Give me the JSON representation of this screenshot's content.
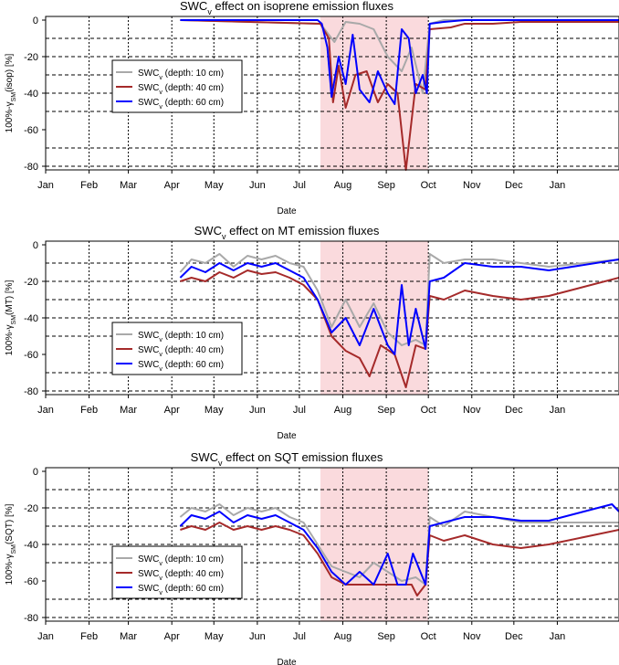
{
  "chart_data": [
    {
      "type": "line",
      "title": "SWC",
      "title_sub": "v",
      "title_rest": " effect on isoprene emission fluxes",
      "xlabel": "Date",
      "ylabel": "100%-γ",
      "ylabel_sub": "SM",
      "ylabel_rest": "(isop) [%]",
      "x_unit": "day of year",
      "xlim": [
        1,
        410
      ],
      "ylim": [
        -82,
        2
      ],
      "x_ticks": [
        {
          "x": 1,
          "label": "Jan"
        },
        {
          "x": 32,
          "label": "Feb"
        },
        {
          "x": 60,
          "label": "Mar"
        },
        {
          "x": 91,
          "label": "Apr"
        },
        {
          "x": 121,
          "label": "May"
        },
        {
          "x": 152,
          "label": "Jun"
        },
        {
          "x": 182,
          "label": "Jul"
        },
        {
          "x": 213,
          "label": "Aug"
        },
        {
          "x": 244,
          "label": "Sep"
        },
        {
          "x": 274,
          "label": "Oct"
        },
        {
          "x": 305,
          "label": "Nov"
        },
        {
          "x": 335,
          "label": "Dec"
        },
        {
          "x": 366,
          "label": "Jan"
        }
      ],
      "y_ticks": [
        0,
        -20,
        -40,
        -60,
        -80
      ],
      "h_gridlines": [
        -10,
        -20,
        -30,
        -40,
        -50,
        -70,
        -80
      ],
      "shaded_region": {
        "x_start": 197,
        "x_end": 274,
        "color": "#fadadd"
      },
      "legend_position": "left",
      "series": [
        {
          "name": "SWC",
          "name_sub": "v",
          "name_rest": " (depth: 10 cm)",
          "color": "#a9a9a9",
          "x": [
            97,
            197,
            207,
            215,
            225,
            235,
            245,
            255,
            262,
            270,
            275,
            285,
            300,
            320,
            340,
            360,
            410
          ],
          "y": [
            0,
            -2,
            -12,
            -1,
            -2,
            -5,
            -20,
            -28,
            -15,
            -40,
            -2,
            0,
            0,
            0,
            0,
            0,
            0
          ]
        },
        {
          "name": "SWC",
          "name_sub": "v",
          "name_rest": " (depth: 40 cm)",
          "color": "#a52a2a",
          "x": [
            97,
            197,
            203,
            206,
            210,
            215,
            222,
            230,
            238,
            245,
            252,
            258,
            265,
            272,
            275,
            290,
            300,
            320,
            340,
            360,
            410
          ],
          "y": [
            0,
            -2,
            -10,
            -45,
            -25,
            -48,
            -30,
            -28,
            -45,
            -35,
            -40,
            -82,
            -35,
            -38,
            -5,
            -4,
            -2,
            -2,
            -1,
            -1,
            -1
          ]
        },
        {
          "name": "SWC",
          "name_sub": "v",
          "name_rest": " (depth: 60 cm)",
          "color": "#0000ff",
          "x": [
            97,
            195,
            198,
            202,
            205,
            210,
            215,
            220,
            225,
            232,
            238,
            245,
            250,
            255,
            260,
            265,
            270,
            273,
            275,
            285,
            300,
            320,
            340,
            360,
            410
          ],
          "y": [
            0,
            0,
            -2,
            -15,
            -42,
            -20,
            -35,
            -8,
            -38,
            -45,
            -28,
            -40,
            -46,
            -5,
            -10,
            -40,
            -30,
            -40,
            -2,
            -1,
            0,
            0,
            0,
            0,
            0
          ]
        }
      ]
    },
    {
      "type": "line",
      "title": "SWC",
      "title_sub": "v",
      "title_rest": " effect on MT emission fluxes",
      "xlabel": "Date",
      "ylabel": "100%-γ",
      "ylabel_sub": "SM",
      "ylabel_rest": "(MT) [%]",
      "x_unit": "day of year",
      "xlim": [
        1,
        410
      ],
      "ylim": [
        -82,
        2
      ],
      "x_ticks": [
        {
          "x": 1,
          "label": "Jan"
        },
        {
          "x": 32,
          "label": "Feb"
        },
        {
          "x": 60,
          "label": "Mar"
        },
        {
          "x": 91,
          "label": "Apr"
        },
        {
          "x": 121,
          "label": "May"
        },
        {
          "x": 152,
          "label": "Jun"
        },
        {
          "x": 182,
          "label": "Jul"
        },
        {
          "x": 213,
          "label": "Aug"
        },
        {
          "x": 244,
          "label": "Sep"
        },
        {
          "x": 274,
          "label": "Oct"
        },
        {
          "x": 305,
          "label": "Nov"
        },
        {
          "x": 335,
          "label": "Dec"
        },
        {
          "x": 366,
          "label": "Jan"
        }
      ],
      "y_ticks": [
        0,
        -20,
        -40,
        -60,
        -80
      ],
      "h_gridlines": [
        -10,
        -20,
        -30,
        -40,
        -50,
        -70,
        -80
      ],
      "shaded_region": {
        "x_start": 197,
        "x_end": 274,
        "color": "#fadadd"
      },
      "legend_position": "left",
      "series": [
        {
          "name": "SWC",
          "name_sub": "v",
          "name_rest": " (depth: 10 cm)",
          "color": "#a9a9a9",
          "x": [
            97,
            105,
            115,
            125,
            135,
            145,
            155,
            165,
            175,
            185,
            195,
            205,
            215,
            225,
            235,
            245,
            255,
            265,
            272,
            275,
            285,
            300,
            320,
            340,
            360,
            410
          ],
          "y": [
            -15,
            -8,
            -10,
            -5,
            -12,
            -6,
            -8,
            -6,
            -10,
            -12,
            -25,
            -45,
            -30,
            -45,
            -32,
            -48,
            -55,
            -52,
            -55,
            -5,
            -10,
            -8,
            -8,
            -10,
            -12,
            -8
          ]
        },
        {
          "name": "SWC",
          "name_sub": "v",
          "name_rest": " (depth: 40 cm)",
          "color": "#a52a2a",
          "x": [
            97,
            105,
            115,
            125,
            135,
            145,
            155,
            165,
            175,
            185,
            195,
            205,
            215,
            225,
            232,
            240,
            250,
            258,
            265,
            272,
            275,
            285,
            300,
            320,
            340,
            360,
            410
          ],
          "y": [
            -20,
            -18,
            -20,
            -15,
            -18,
            -14,
            -16,
            -15,
            -18,
            -22,
            -30,
            -50,
            -58,
            -62,
            -72,
            -55,
            -60,
            -78,
            -55,
            -57,
            -28,
            -30,
            -25,
            -28,
            -30,
            -28,
            -18
          ]
        },
        {
          "name": "SWC",
          "name_sub": "v",
          "name_rest": " (depth: 60 cm)",
          "color": "#0000ff",
          "x": [
            97,
            105,
            115,
            125,
            135,
            145,
            155,
            165,
            175,
            185,
            195,
            205,
            215,
            225,
            235,
            245,
            250,
            255,
            260,
            265,
            272,
            275,
            285,
            300,
            320,
            340,
            360,
            410
          ],
          "y": [
            -18,
            -12,
            -15,
            -10,
            -14,
            -10,
            -12,
            -10,
            -14,
            -18,
            -30,
            -48,
            -40,
            -55,
            -35,
            -55,
            -60,
            -22,
            -55,
            -35,
            -57,
            -20,
            -18,
            -10,
            -12,
            -12,
            -14,
            -8
          ]
        }
      ]
    },
    {
      "type": "line",
      "title": "SWC",
      "title_sub": "v",
      "title_rest": " effect on SQT emission fluxes",
      "xlabel": "Date",
      "ylabel": "100%-γ",
      "ylabel_sub": "SM",
      "ylabel_rest": "(SQT) [%]",
      "x_unit": "day of year",
      "xlim": [
        1,
        410
      ],
      "ylim": [
        -82,
        2
      ],
      "x_ticks": [
        {
          "x": 1,
          "label": "Jan"
        },
        {
          "x": 32,
          "label": "Feb"
        },
        {
          "x": 60,
          "label": "Mar"
        },
        {
          "x": 91,
          "label": "Apr"
        },
        {
          "x": 121,
          "label": "May"
        },
        {
          "x": 152,
          "label": "Jun"
        },
        {
          "x": 182,
          "label": "Jul"
        },
        {
          "x": 213,
          "label": "Aug"
        },
        {
          "x": 244,
          "label": "Sep"
        },
        {
          "x": 274,
          "label": "Oct"
        },
        {
          "x": 305,
          "label": "Nov"
        },
        {
          "x": 335,
          "label": "Dec"
        },
        {
          "x": 366,
          "label": "Jan"
        }
      ],
      "y_ticks": [
        0,
        -20,
        -40,
        -60,
        -80
      ],
      "h_gridlines": [
        -10,
        -20,
        -30,
        -40,
        -50,
        -70,
        -80
      ],
      "shaded_region": {
        "x_start": 197,
        "x_end": 274,
        "color": "#fadadd"
      },
      "legend_position": "left",
      "series": [
        {
          "name": "SWC",
          "name_sub": "v",
          "name_rest": " (depth: 10 cm)",
          "color": "#a9a9a9",
          "x": [
            97,
            105,
            115,
            125,
            135,
            145,
            155,
            165,
            175,
            185,
            195,
            205,
            215,
            225,
            235,
            245,
            255,
            265,
            272,
            275,
            285,
            300,
            320,
            340,
            360,
            410
          ],
          "y": [
            -25,
            -20,
            -22,
            -18,
            -24,
            -20,
            -22,
            -20,
            -25,
            -28,
            -40,
            -52,
            -55,
            -58,
            -50,
            -55,
            -60,
            -58,
            -62,
            -25,
            -30,
            -22,
            -25,
            -28,
            -28,
            -28
          ]
        },
        {
          "name": "SWC",
          "name_sub": "v",
          "name_rest": " (depth: 40 cm)",
          "color": "#a52a2a",
          "x": [
            97,
            105,
            115,
            125,
            135,
            145,
            155,
            165,
            175,
            185,
            195,
            205,
            215,
            225,
            235,
            245,
            255,
            262,
            266,
            272,
            275,
            285,
            300,
            320,
            340,
            360,
            410
          ],
          "y": [
            -32,
            -30,
            -32,
            -28,
            -32,
            -30,
            -32,
            -30,
            -32,
            -35,
            -45,
            -58,
            -62,
            -62,
            -62,
            -62,
            -62,
            -62,
            -68,
            -62,
            -35,
            -38,
            -35,
            -40,
            -42,
            -40,
            -32
          ]
        },
        {
          "name": "SWC",
          "name_sub": "v",
          "name_rest": " (depth: 60 cm)",
          "color": "#0000ff",
          "x": [
            97,
            105,
            115,
            125,
            135,
            145,
            155,
            165,
            175,
            185,
            195,
            205,
            215,
            225,
            235,
            245,
            252,
            258,
            263,
            272,
            275,
            285,
            300,
            320,
            340,
            360,
            405,
            410
          ],
          "y": [
            -30,
            -24,
            -26,
            -22,
            -28,
            -24,
            -26,
            -24,
            -28,
            -32,
            -42,
            -55,
            -62,
            -55,
            -62,
            -45,
            -62,
            -62,
            -45,
            -62,
            -30,
            -28,
            -25,
            -25,
            -27,
            -27,
            -18,
            -22
          ]
        }
      ]
    }
  ]
}
